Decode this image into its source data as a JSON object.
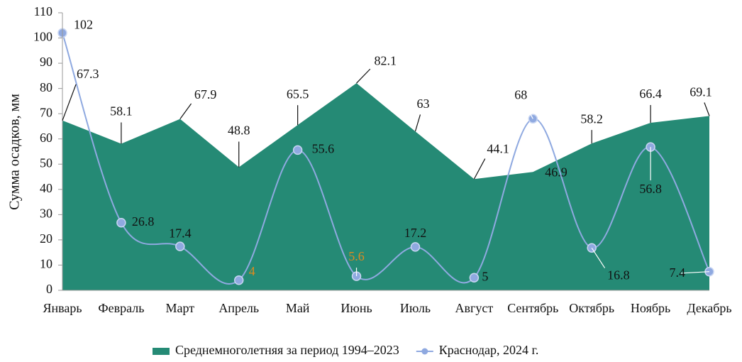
{
  "chart_data": {
    "type": "area_line",
    "y_label": "Сумма осадков, мм",
    "categories": [
      "Январь",
      "Февраль",
      "Март",
      "Апрель",
      "Май",
      "Июнь",
      "Июль",
      "Август",
      "Сентябрь",
      "Октябрь",
      "Ноябрь",
      "Декабрь"
    ],
    "series": [
      {
        "name": "Среднемноголетняя за период 1994–2023",
        "type": "area",
        "color": "#258a75",
        "values": [
          67.3,
          58.1,
          67.9,
          48.8,
          65.5,
          82.1,
          63,
          44.1,
          46.9,
          58.2,
          66.4,
          69.1
        ]
      },
      {
        "name": "Краснодар, 2024 г.",
        "type": "line",
        "color": "#8fa9e0",
        "smooth": true,
        "values": [
          102,
          26.8,
          17.4,
          4,
          55.6,
          5.6,
          17.2,
          5,
          68,
          16.8,
          56.8,
          7.4
        ],
        "label_colors": [
          "#111",
          "#111",
          "#111",
          "#e08a1e",
          "#111",
          "#e08a1e",
          "#111",
          "#111",
          "#111",
          "#111",
          "#111",
          "#111"
        ]
      }
    ],
    "ylim": [
      0,
      110
    ],
    "yticks": [
      0,
      10,
      20,
      30,
      40,
      50,
      60,
      70,
      80,
      90,
      100,
      110
    ],
    "legend": "bottom"
  }
}
